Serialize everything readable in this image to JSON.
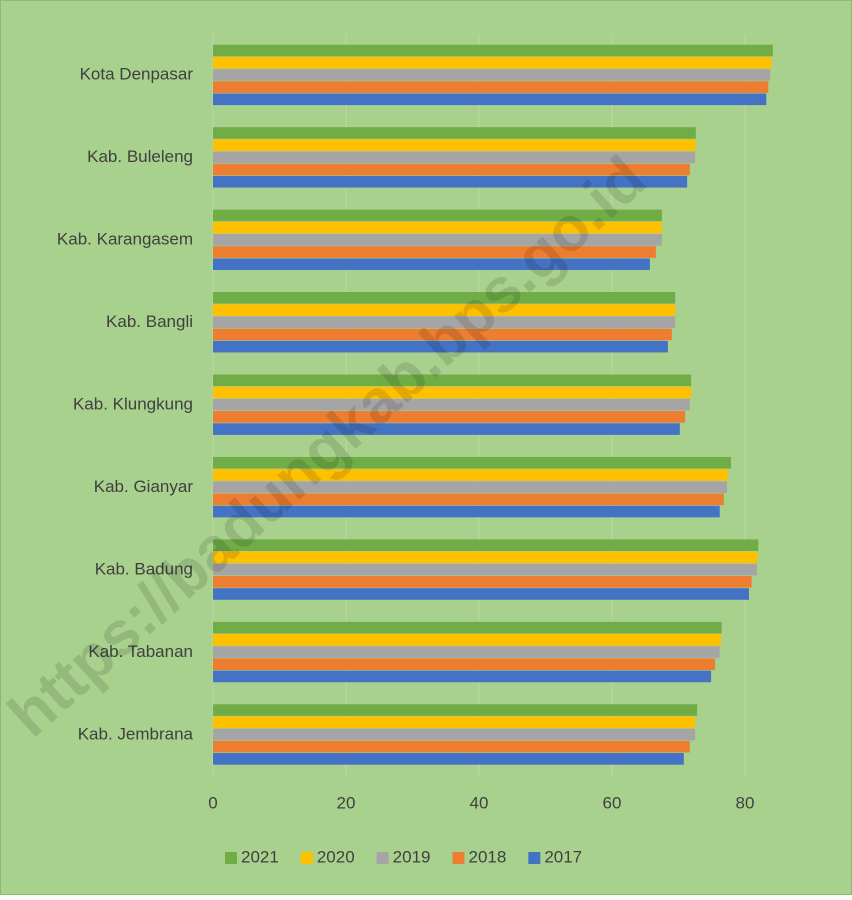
{
  "chart_data": {
    "type": "hbar",
    "watermark": "https://badungkab.bps.go.id",
    "categories": [
      "Kota Denpasar",
      "Kab. Buleleng",
      "Kab. Karangasem",
      "Kab. Bangli",
      "Kab. Klungkung",
      "Kab. Gianyar",
      "Kab. Badung",
      "Kab. Tabanan",
      "Kab. Jembrana"
    ],
    "series": [
      {
        "name": "2021",
        "color": "#70ad47",
        "values": [
          84.2,
          72.6,
          67.5,
          69.5,
          71.9,
          77.9,
          82.0,
          76.5,
          72.8
        ]
      },
      {
        "name": "2020",
        "color": "#ffc000",
        "values": [
          84.0,
          72.6,
          67.5,
          69.5,
          71.9,
          77.4,
          81.9,
          76.4,
          72.5
        ]
      },
      {
        "name": "2019",
        "color": "#a5a5a5",
        "values": [
          83.8,
          72.5,
          67.5,
          69.5,
          71.7,
          77.3,
          81.8,
          76.2,
          72.5
        ]
      },
      {
        "name": "2018",
        "color": "#ed7d31",
        "values": [
          83.5,
          71.7,
          66.6,
          69.0,
          71.0,
          76.8,
          81.0,
          75.5,
          71.7
        ]
      },
      {
        "name": "2017",
        "color": "#4472c4",
        "values": [
          83.2,
          71.3,
          65.7,
          68.4,
          70.2,
          76.2,
          80.6,
          74.9,
          70.8
        ]
      }
    ],
    "xlim": [
      0,
      88
    ],
    "xticks": [
      0,
      20,
      40,
      60,
      80
    ],
    "grid": true,
    "legend": "bottom"
  }
}
